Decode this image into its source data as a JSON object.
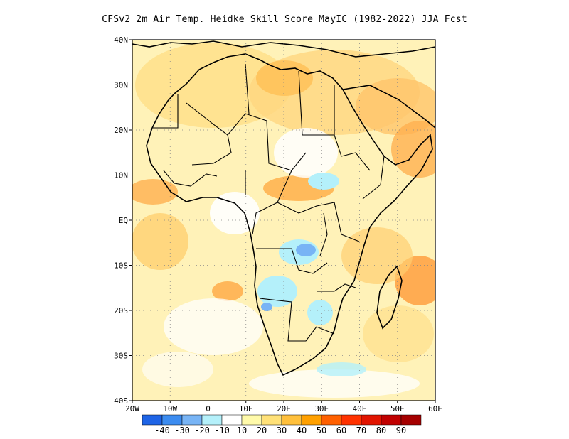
{
  "title": "CFSv2 2m Air Temp. Heidke Skill Score MayIC (1982-2022) JJA Fcst",
  "map": {
    "lat_labels": [
      "40N",
      "30N",
      "20N",
      "10N",
      "EQ",
      "10S",
      "20S",
      "30S",
      "40S"
    ],
    "lon_labels": [
      "20W",
      "10W",
      "0",
      "10E",
      "20E",
      "30E",
      "40E",
      "50E",
      "60E"
    ]
  },
  "colorbar": {
    "labels": [
      "-40",
      "-30",
      "-20",
      "-10",
      "10",
      "20",
      "30",
      "40",
      "50",
      "60",
      "70",
      "80",
      "90"
    ],
    "colors": [
      "#1e64e6",
      "#3c8cf0",
      "#78b4f5",
      "#b4f0fa",
      "#ffffff",
      "#fffaaa",
      "#ffe178",
      "#ffc03c",
      "#ffa000",
      "#ff6000",
      "#ff3200",
      "#e11400",
      "#c00000",
      "#a50000"
    ]
  }
}
